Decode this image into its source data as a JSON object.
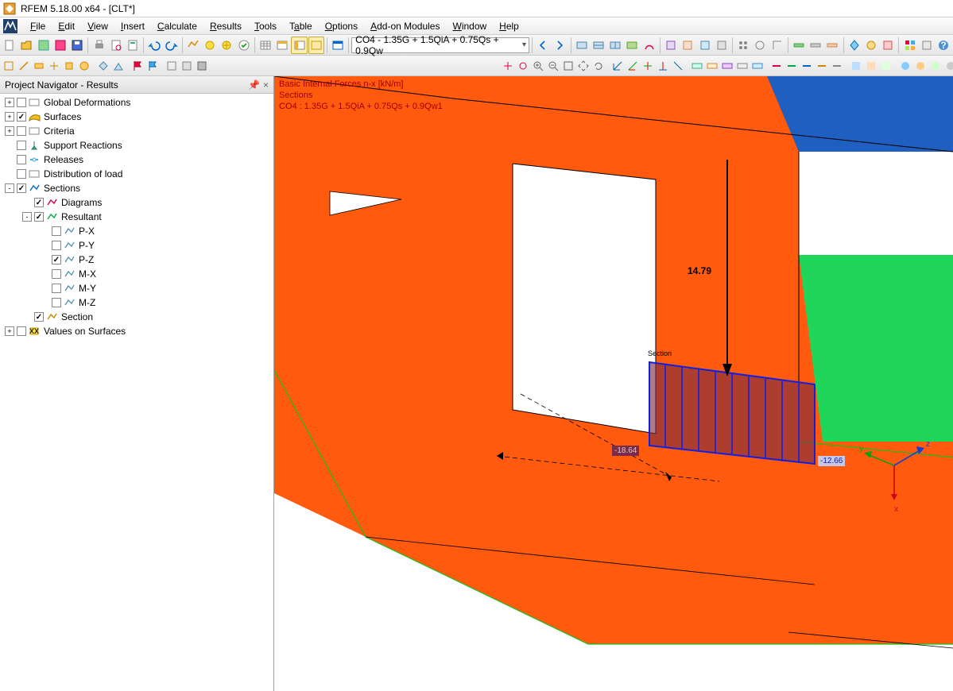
{
  "window": {
    "title": "RFEM 5.18.00 x64 - [CLT*]"
  },
  "menu": {
    "items": [
      "File",
      "Edit",
      "View",
      "Insert",
      "Calculate",
      "Results",
      "Tools",
      "Table",
      "Options",
      "Add-on Modules",
      "Window",
      "Help"
    ]
  },
  "toolbar1": {
    "combo_load": "CO4 - 1.35G + 1.5QiA + 0.75Qs + 0.9Qw"
  },
  "navigator": {
    "title": "Project Navigator - Results",
    "items": [
      {
        "lvl": 0,
        "toggle": "+",
        "checked": false,
        "icon": "globaldef",
        "label": "Global Deformations"
      },
      {
        "lvl": 0,
        "toggle": "+",
        "checked": true,
        "icon": "surfaces",
        "label": "Surfaces"
      },
      {
        "lvl": 0,
        "toggle": "+",
        "checked": false,
        "icon": "criteria",
        "label": "Criteria"
      },
      {
        "lvl": 0,
        "toggle": "",
        "checked": false,
        "icon": "support",
        "label": "Support Reactions"
      },
      {
        "lvl": 0,
        "toggle": "",
        "checked": false,
        "icon": "releases",
        "label": "Releases"
      },
      {
        "lvl": 0,
        "toggle": "",
        "checked": false,
        "icon": "distload",
        "label": "Distribution of load"
      },
      {
        "lvl": 0,
        "toggle": "-",
        "checked": true,
        "icon": "sections",
        "label": "Sections"
      },
      {
        "lvl": 1,
        "toggle": "",
        "checked": true,
        "icon": "diagrams",
        "label": "Diagrams"
      },
      {
        "lvl": 1,
        "toggle": "-",
        "checked": true,
        "icon": "resultant",
        "label": "Resultant"
      },
      {
        "lvl": 2,
        "toggle": "",
        "checked": false,
        "icon": "force",
        "label": "P-X"
      },
      {
        "lvl": 2,
        "toggle": "",
        "checked": false,
        "icon": "force",
        "label": "P-Y"
      },
      {
        "lvl": 2,
        "toggle": "",
        "checked": true,
        "icon": "force",
        "label": "P-Z"
      },
      {
        "lvl": 2,
        "toggle": "",
        "checked": false,
        "icon": "force",
        "label": "M-X"
      },
      {
        "lvl": 2,
        "toggle": "",
        "checked": false,
        "icon": "force",
        "label": "M-Y"
      },
      {
        "lvl": 2,
        "toggle": "",
        "checked": false,
        "icon": "force",
        "label": "M-Z"
      },
      {
        "lvl": 1,
        "toggle": "",
        "checked": true,
        "icon": "section",
        "label": "Section"
      },
      {
        "lvl": 0,
        "toggle": "+",
        "checked": false,
        "icon": "valsurf",
        "label": "Values on Surfaces"
      }
    ]
  },
  "viewport": {
    "overlay": {
      "line1": "Basic Internal Forces n-x [kN/m]",
      "line2": "Sections",
      "line3": "CO4 : 1.35G + 1.5QiA + 0.75Qs + 0.9Qw1"
    },
    "force_label": "14.79",
    "section_label": "Section",
    "tag_left": "-18.64",
    "tag_right": "-12.66",
    "axes": {
      "x": "x",
      "y": "y",
      "z": "z"
    },
    "colors": {
      "wall_orange": "#ff5a0d",
      "wall_blue": "#1f5fbf",
      "wall_green": "#1fd65a",
      "diagram_stroke": "#1020e0",
      "diagram_fill": "#7a2b46",
      "diagram_fill_opacity": 0.62,
      "tag_left_bg": "#7a2b46",
      "tag_left_fg": "#d8c8d0",
      "tag_right_bg": "#c5c8e8",
      "tag_right_fg": "#1020a0",
      "edge_green": "#18c018"
    },
    "geometry_note": "Isometric interior view; door opening in orange wall; section diagram (hatched trapezoid) at wall base right of opening; arrow 14.79 points downward to diagram; dashed axis lines through section; coordinate triad lower-right."
  }
}
